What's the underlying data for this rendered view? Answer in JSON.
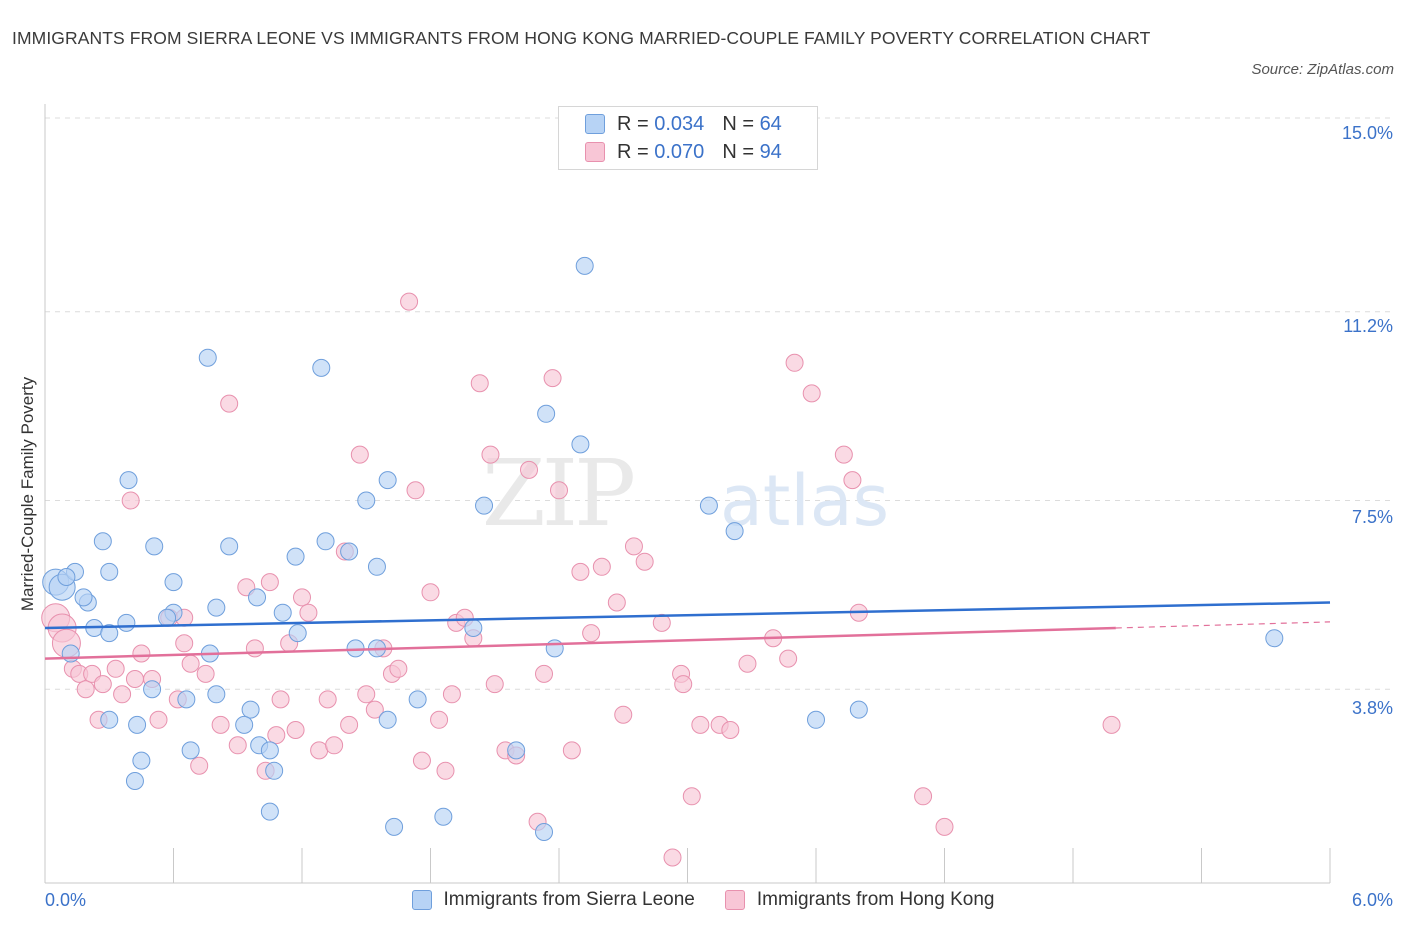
{
  "header": {
    "title": "IMMIGRANTS FROM SIERRA LEONE VS IMMIGRANTS FROM HONG KONG MARRIED-COUPLE FAMILY POVERTY CORRELATION CHART",
    "source": "Source: ZipAtlas.com"
  },
  "watermark": {
    "zip": "ZIP",
    "atlas": "atlas"
  },
  "legend": {
    "r_label": "R =",
    "n_label": "N =",
    "rows": [
      {
        "r": "0.034",
        "n": "64"
      },
      {
        "r": "0.070",
        "n": "94"
      }
    ]
  },
  "colors": {
    "series1_fill": "#b7d3f5",
    "series1_stroke": "#6f9fdc",
    "series1_line": "#2f6fcf",
    "series2_fill": "#f8c6d6",
    "series2_stroke": "#e891ae",
    "series2_line": "#e2709a",
    "tick_text": "#3b72c9"
  },
  "chart_data": {
    "type": "scatter",
    "title": "IMMIGRANTS FROM SIERRA LEONE VS IMMIGRANTS FROM HONG KONG MARRIED-COUPLE FAMILY POVERTY CORRELATION CHART",
    "xlabel": "",
    "ylabel": "Married-Couple Family Poverty",
    "xlim": [
      0.0,
      6.0
    ],
    "ylim": [
      0.0,
      15.0
    ],
    "x_tick_labels": [
      "0.0%",
      "6.0%"
    ],
    "y_ticks": [
      3.8,
      7.5,
      11.2,
      15.0
    ],
    "y_tick_labels": [
      "3.8%",
      "7.5%",
      "11.2%",
      "15.0%"
    ],
    "grid": true,
    "legend_position": "top-center",
    "series": [
      {
        "name": "Immigrants from Sierra Leone",
        "r": 0.034,
        "n": 64,
        "trend": {
          "x": [
            0.0,
            6.0
          ],
          "y": [
            5.0,
            5.5
          ]
        },
        "points": [
          [
            0.05,
            5.9
          ],
          [
            0.08,
            5.8
          ],
          [
            0.14,
            6.1
          ],
          [
            0.2,
            5.5
          ],
          [
            0.18,
            5.6
          ],
          [
            0.3,
            6.1
          ],
          [
            0.27,
            6.7
          ],
          [
            0.12,
            4.5
          ],
          [
            0.23,
            5.0
          ],
          [
            0.3,
            4.9
          ],
          [
            0.38,
            5.1
          ],
          [
            0.39,
            7.9
          ],
          [
            0.51,
            6.6
          ],
          [
            0.6,
            5.9
          ],
          [
            0.6,
            5.3
          ],
          [
            0.57,
            5.2
          ],
          [
            0.43,
            3.1
          ],
          [
            0.5,
            3.8
          ],
          [
            0.45,
            2.4
          ],
          [
            0.42,
            2.0
          ],
          [
            0.66,
            3.6
          ],
          [
            0.68,
            2.6
          ],
          [
            0.77,
            4.5
          ],
          [
            0.8,
            3.7
          ],
          [
            0.76,
            10.3
          ],
          [
            0.8,
            5.4
          ],
          [
            0.86,
            6.6
          ],
          [
            0.96,
            3.4
          ],
          [
            0.93,
            3.1
          ],
          [
            1.0,
            2.7
          ],
          [
            0.99,
            5.6
          ],
          [
            1.05,
            2.6
          ],
          [
            1.07,
            2.2
          ],
          [
            1.05,
            1.4
          ],
          [
            1.11,
            5.3
          ],
          [
            1.18,
            4.9
          ],
          [
            1.17,
            6.4
          ],
          [
            1.29,
            10.1
          ],
          [
            1.31,
            6.7
          ],
          [
            1.42,
            6.5
          ],
          [
            1.45,
            4.6
          ],
          [
            1.55,
            4.6
          ],
          [
            1.5,
            7.5
          ],
          [
            1.55,
            6.2
          ],
          [
            1.6,
            7.9
          ],
          [
            1.6,
            3.2
          ],
          [
            1.63,
            1.1
          ],
          [
            1.74,
            3.6
          ],
          [
            1.86,
            1.3
          ],
          [
            2.0,
            5.0
          ],
          [
            2.05,
            7.4
          ],
          [
            2.2,
            2.6
          ],
          [
            2.38,
            4.6
          ],
          [
            2.33,
            1.0
          ],
          [
            2.34,
            9.2
          ],
          [
            2.5,
            8.6
          ],
          [
            2.52,
            12.1
          ],
          [
            3.1,
            7.4
          ],
          [
            3.22,
            6.9
          ],
          [
            3.6,
            3.2
          ],
          [
            3.8,
            3.4
          ],
          [
            5.74,
            4.8
          ],
          [
            0.1,
            6.0
          ],
          [
            0.3,
            3.2
          ]
        ]
      },
      {
        "name": "Immigrants from Hong Kong",
        "r": 0.07,
        "n": 94,
        "trend": {
          "x": [
            0.0,
            5.0
          ],
          "y": [
            4.4,
            5.0
          ]
        },
        "dashed_extension": {
          "x": [
            5.0,
            6.0
          ],
          "y": [
            5.0,
            5.12
          ]
        },
        "points": [
          [
            0.05,
            5.2
          ],
          [
            0.08,
            5.0
          ],
          [
            0.1,
            4.7
          ],
          [
            0.13,
            4.2
          ],
          [
            0.16,
            4.1
          ],
          [
            0.19,
            3.8
          ],
          [
            0.22,
            4.1
          ],
          [
            0.25,
            3.2
          ],
          [
            0.27,
            3.9
          ],
          [
            0.33,
            4.2
          ],
          [
            0.36,
            3.7
          ],
          [
            0.4,
            7.5
          ],
          [
            0.42,
            4.0
          ],
          [
            0.45,
            4.5
          ],
          [
            0.5,
            4.0
          ],
          [
            0.53,
            3.2
          ],
          [
            0.58,
            5.2
          ],
          [
            0.62,
            3.6
          ],
          [
            0.65,
            4.7
          ],
          [
            0.68,
            4.3
          ],
          [
            0.72,
            2.3
          ],
          [
            0.75,
            4.1
          ],
          [
            0.82,
            3.1
          ],
          [
            0.86,
            9.4
          ],
          [
            0.9,
            2.7
          ],
          [
            0.94,
            5.8
          ],
          [
            0.98,
            4.6
          ],
          [
            1.03,
            2.2
          ],
          [
            1.08,
            2.9
          ],
          [
            1.1,
            3.6
          ],
          [
            1.14,
            4.7
          ],
          [
            1.17,
            3.0
          ],
          [
            1.2,
            5.6
          ],
          [
            1.23,
            5.3
          ],
          [
            1.28,
            2.6
          ],
          [
            1.32,
            3.6
          ],
          [
            1.35,
            2.7
          ],
          [
            1.4,
            6.5
          ],
          [
            1.42,
            3.1
          ],
          [
            1.47,
            8.4
          ],
          [
            1.5,
            3.7
          ],
          [
            1.54,
            3.4
          ],
          [
            1.58,
            4.6
          ],
          [
            1.62,
            4.1
          ],
          [
            1.65,
            4.2
          ],
          [
            1.7,
            11.4
          ],
          [
            1.73,
            7.7
          ],
          [
            1.76,
            2.4
          ],
          [
            1.8,
            5.7
          ],
          [
            1.84,
            3.2
          ],
          [
            1.87,
            2.2
          ],
          [
            1.9,
            3.7
          ],
          [
            1.92,
            5.1
          ],
          [
            1.96,
            5.2
          ],
          [
            2.0,
            4.8
          ],
          [
            2.03,
            9.8
          ],
          [
            2.08,
            8.4
          ],
          [
            2.1,
            3.9
          ],
          [
            2.15,
            2.6
          ],
          [
            2.2,
            2.5
          ],
          [
            2.26,
            8.1
          ],
          [
            2.3,
            1.2
          ],
          [
            2.33,
            4.1
          ],
          [
            2.37,
            9.9
          ],
          [
            2.4,
            7.7
          ],
          [
            2.46,
            2.6
          ],
          [
            2.5,
            6.1
          ],
          [
            2.55,
            4.9
          ],
          [
            2.6,
            6.2
          ],
          [
            2.67,
            5.5
          ],
          [
            2.7,
            3.3
          ],
          [
            2.75,
            6.6
          ],
          [
            2.8,
            6.3
          ],
          [
            2.88,
            5.1
          ],
          [
            2.93,
            0.5
          ],
          [
            2.97,
            4.1
          ],
          [
            3.02,
            1.7
          ],
          [
            3.06,
            3.1
          ],
          [
            3.15,
            3.1
          ],
          [
            3.2,
            3.0
          ],
          [
            3.28,
            4.3
          ],
          [
            3.4,
            4.8
          ],
          [
            3.47,
            4.4
          ],
          [
            3.5,
            10.2
          ],
          [
            3.73,
            8.4
          ],
          [
            3.77,
            7.9
          ],
          [
            3.8,
            5.3
          ],
          [
            4.1,
            1.7
          ],
          [
            4.2,
            1.1
          ],
          [
            4.98,
            3.1
          ],
          [
            3.58,
            9.6
          ],
          [
            0.65,
            5.2
          ],
          [
            1.05,
            5.9
          ],
          [
            2.98,
            3.9
          ]
        ]
      }
    ]
  },
  "bottom_legend": {
    "items": [
      "Immigrants from Sierra Leone",
      "Immigrants from Hong Kong"
    ]
  },
  "axes": {
    "x_left_label": "0.0%",
    "x_right_label": "6.0%",
    "y_labels": [
      "15.0%",
      "11.2%",
      "7.5%",
      "3.8%"
    ]
  }
}
